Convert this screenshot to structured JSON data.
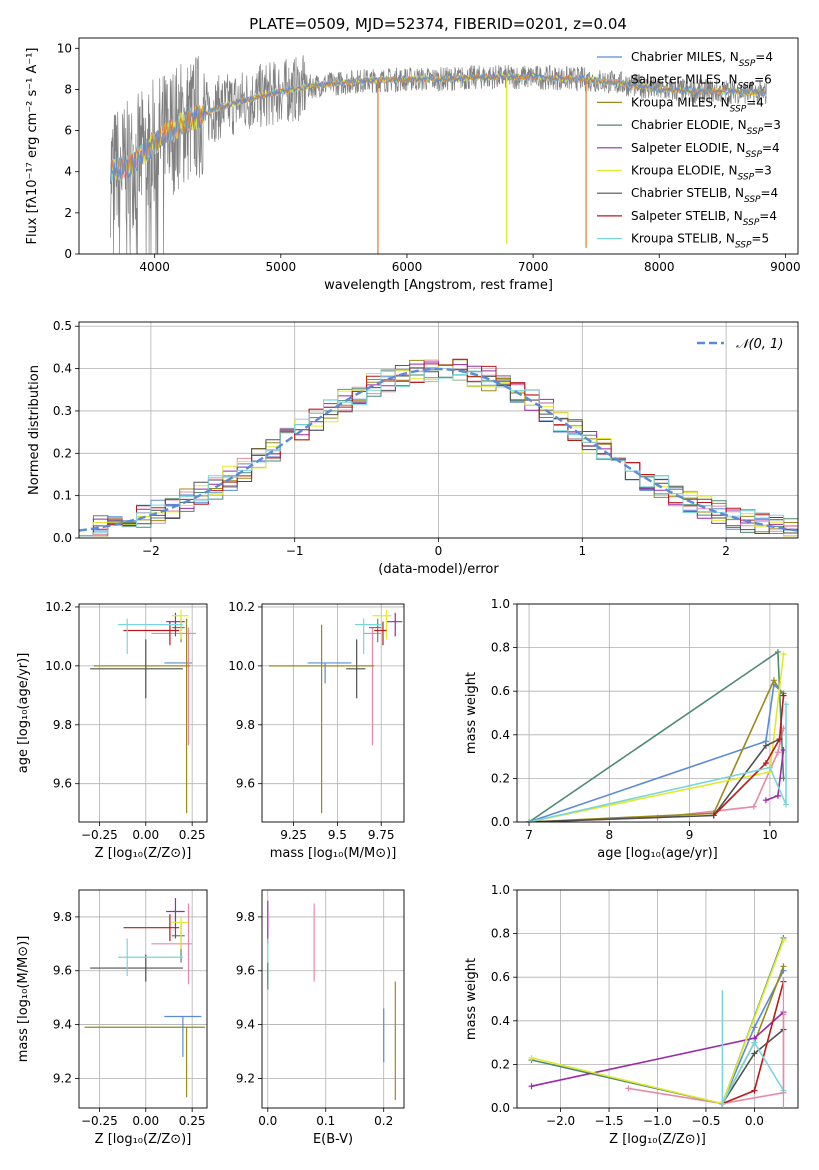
{
  "figure": {
    "title": "PLATE=0509, MJD=52374, FIBERID=0201, z=0.04"
  },
  "colors": {
    "Chabrier MILES": "#5b8bd8",
    "Salpeter MILES": "#e88aa6",
    "Kroupa MILES": "#9a8a1a",
    "Chabrier ELODIE": "#4e8a74",
    "Salpeter ELODIE": "#9a2aa8",
    "Kroupa ELODIE": "#e1ea2a",
    "Chabrier STELIB": "#505050",
    "Salpeter STELIB": "#b81a1a",
    "Kroupa STELIB": "#7ad6dc",
    "orange": "#e07a2a",
    "gray_data": "#808080",
    "normal_curve": "#5b8bd8"
  },
  "chart_data": [
    {
      "id": "spectrum",
      "type": "line",
      "title": "PLATE=0509, MJD=52374, FIBERID=0201, z=0.04",
      "xlabel": "wavelength [Angstrom, rest frame]",
      "ylabel": "Flux [fλ10⁻¹⁷ erg cm⁻² s⁻¹ A⁻¹]",
      "xlim": [
        3400,
        9100
      ],
      "ylim": [
        0,
        10.5
      ],
      "xticks": [
        4000,
        5000,
        6000,
        7000,
        8000,
        9000
      ],
      "yticks": [
        0,
        2,
        4,
        6,
        8,
        10
      ],
      "grid": false,
      "legend_position": "top-right",
      "legend": [
        {
          "name": "Chabrier MILES",
          "nssp": "4"
        },
        {
          "name": "Salpeter MILES",
          "nssp": "6"
        },
        {
          "name": "Kroupa MILES",
          "nssp": "4"
        },
        {
          "name": "Chabrier ELODIE",
          "nssp": "3"
        },
        {
          "name": "Salpeter ELODIE",
          "nssp": "4"
        },
        {
          "name": "Kroupa ELODIE",
          "nssp": "3"
        },
        {
          "name": "Chabrier STELIB",
          "nssp": "4"
        },
        {
          "name": "Salpeter STELIB",
          "nssp": "4"
        },
        {
          "name": "Kroupa STELIB",
          "nssp": "5"
        }
      ],
      "continuum": {
        "x": [
          3650,
          3800,
          3900,
          4000,
          4200,
          4500,
          4800,
          5000,
          5300,
          5600,
          6000,
          6300,
          6600,
          7000,
          7400,
          7700,
          8000,
          8300,
          8600,
          8850
        ],
        "y": [
          4.0,
          4.3,
          4.8,
          5.4,
          6.3,
          7.1,
          7.6,
          7.9,
          8.2,
          8.4,
          8.5,
          8.5,
          8.6,
          8.6,
          8.5,
          8.3,
          8.0,
          7.9,
          7.9,
          7.8
        ]
      },
      "dips": [
        {
          "x": 5770,
          "y": 0.0
        },
        {
          "x": 6790,
          "y": 0.5
        },
        {
          "x": 7420,
          "y": 0.3
        }
      ]
    },
    {
      "id": "residuals",
      "type": "bar",
      "xlabel": "(data-model)/error",
      "ylabel": "Normed distribution",
      "xlim": [
        -2.5,
        2.5
      ],
      "ylim": [
        0,
        0.51
      ],
      "xticks": [
        -2,
        -1,
        0,
        1,
        2
      ],
      "yticks": [
        0.0,
        0.1,
        0.2,
        0.3,
        0.4,
        0.5
      ],
      "grid": true,
      "legend_position": "top-right",
      "legend": [
        {
          "name": "𝒩(0, 1)"
        }
      ],
      "bin_width": 0.1,
      "note_series": "nine histograms, one per model"
    },
    {
      "id": "age_vs_Z",
      "type": "scatter",
      "xlabel": "Z [log₁₀(Z/Z⊙)]",
      "ylabel": "age  [log₁₀(age/yr)]",
      "xlim": [
        -0.36,
        0.33
      ],
      "ylim": [
        9.47,
        10.21
      ],
      "xticks": [
        -0.25,
        0.0,
        0.25
      ],
      "xticklabels": [
        "−0.25",
        "0.00",
        "0.25"
      ],
      "yticks": [
        9.6,
        9.8,
        10.0,
        10.2
      ],
      "grid": true,
      "points": [
        {
          "series": "Chabrier MILES",
          "x": 0.2,
          "y": 10.01,
          "xe": [
            0.1,
            0.05
          ],
          "ye": [
            0.0,
            0.0
          ]
        },
        {
          "series": "Salpeter MILES",
          "x": 0.23,
          "y": 10.11,
          "xe": [
            0.2,
            0.04
          ],
          "ye": [
            0.38,
            0.02
          ]
        },
        {
          "series": "Kroupa MILES",
          "x": 0.22,
          "y": 10.0,
          "xe": [
            0.5,
            0.02
          ],
          "ye": [
            0.5,
            0.16
          ]
        },
        {
          "series": "Chabrier ELODIE",
          "x": 0.19,
          "y": 10.13,
          "xe": [
            0.05,
            0.02
          ],
          "ye": [
            0.05,
            0.03
          ]
        },
        {
          "series": "Salpeter ELODIE",
          "x": 0.16,
          "y": 10.15,
          "xe": [
            0.05,
            0.05
          ],
          "ye": [
            0.05,
            0.03
          ]
        },
        {
          "series": "Kroupa ELODIE",
          "x": 0.19,
          "y": 10.17,
          "xe": [
            0.05,
            0.04
          ],
          "ye": [
            0.08,
            0.02
          ]
        },
        {
          "series": "Chabrier STELIB",
          "x": 0.0,
          "y": 9.99,
          "xe": [
            0.3,
            0.2
          ],
          "ye": [
            0.1,
            0.1
          ]
        },
        {
          "series": "Salpeter STELIB",
          "x": 0.13,
          "y": 10.12,
          "xe": [
            0.25,
            0.05
          ],
          "ye": [
            0.05,
            0.03
          ]
        },
        {
          "series": "Kroupa STELIB",
          "x": -0.1,
          "y": 10.14,
          "xe": [
            0.05,
            0.3
          ],
          "ye": [
            0.1,
            0.02
          ]
        }
      ]
    },
    {
      "id": "age_vs_mass",
      "type": "scatter",
      "xlabel": "mass [log₁₀(M/M⊙)]",
      "xlim": [
        9.07,
        9.88
      ],
      "ylim": [
        9.47,
        10.21
      ],
      "xticks": [
        9.25,
        9.5,
        9.75
      ],
      "yticks": [
        9.6,
        9.8,
        10.0,
        10.2
      ],
      "grid": true,
      "points": [
        {
          "series": "Chabrier MILES",
          "x": 9.43,
          "y": 10.01,
          "xe": [
            0.1,
            0.15
          ],
          "ye": [
            0.07,
            0.0
          ]
        },
        {
          "series": "Salpeter MILES",
          "x": 9.7,
          "y": 10.11,
          "xe": [
            0.05,
            0.05
          ],
          "ye": [
            0.38,
            0.02
          ]
        },
        {
          "series": "Kroupa MILES",
          "x": 9.41,
          "y": 10.0,
          "xe": [
            0.3,
            0.3
          ],
          "ye": [
            0.5,
            0.14
          ]
        },
        {
          "series": "Chabrier ELODIE",
          "x": 9.73,
          "y": 10.13,
          "xe": [
            0.05,
            0.02
          ],
          "ye": [
            0.05,
            0.03
          ]
        },
        {
          "series": "Salpeter ELODIE",
          "x": 9.83,
          "y": 10.15,
          "xe": [
            0.05,
            0.04
          ],
          "ye": [
            0.05,
            0.03
          ]
        },
        {
          "series": "Kroupa ELODIE",
          "x": 9.78,
          "y": 10.17,
          "xe": [
            0.08,
            0.03
          ],
          "ye": [
            0.08,
            0.02
          ]
        },
        {
          "series": "Chabrier STELIB",
          "x": 9.61,
          "y": 9.99,
          "xe": [
            0.06,
            0.05
          ],
          "ye": [
            0.1,
            0.1
          ]
        },
        {
          "series": "Salpeter STELIB",
          "x": 9.76,
          "y": 10.12,
          "xe": [
            0.05,
            0.02
          ],
          "ye": [
            0.05,
            0.03
          ]
        },
        {
          "series": "Kroupa STELIB",
          "x": 9.65,
          "y": 10.14,
          "xe": [
            0.05,
            0.1
          ],
          "ye": [
            0.1,
            0.02
          ]
        }
      ]
    },
    {
      "id": "weight_vs_age",
      "type": "line",
      "xlabel": "age  [log₁₀(age/yr)]",
      "ylabel": "mass weight",
      "xlim": [
        6.85,
        10.35
      ],
      "ylim": [
        0,
        1
      ],
      "xticks": [
        7,
        8,
        9,
        10
      ],
      "yticks": [
        0.0,
        0.2,
        0.4,
        0.6,
        0.8,
        1.0
      ],
      "grid": true,
      "series": [
        {
          "name": "Chabrier MILES",
          "x": [
            7.0,
            9.95,
            10.05,
            10.17
          ],
          "y": [
            0.0,
            0.37,
            0.63,
            0.59
          ]
        },
        {
          "name": "Salpeter MILES",
          "x": [
            7.0,
            8.6,
            9.8,
            10.1,
            10.17
          ],
          "y": [
            0.0,
            0.02,
            0.07,
            0.32,
            0.43
          ]
        },
        {
          "name": "Kroupa MILES",
          "x": [
            7.0,
            9.3,
            10.05,
            10.17
          ],
          "y": [
            0.0,
            0.04,
            0.65,
            0.58
          ]
        },
        {
          "name": "Chabrier ELODIE",
          "x": [
            7.0,
            10.1,
            10.17
          ],
          "y": [
            0.0,
            0.78,
            0.2
          ]
        },
        {
          "name": "Salpeter ELODIE",
          "x": [
            9.95,
            10.1,
            10.17
          ],
          "y": [
            0.1,
            0.12,
            0.33
          ]
        },
        {
          "name": "Kroupa ELODIE",
          "x": [
            7.0,
            10.0,
            10.17
          ],
          "y": [
            0.0,
            0.23,
            0.77
          ]
        },
        {
          "name": "Chabrier STELIB",
          "x": [
            7.0,
            9.3,
            9.95,
            10.12
          ],
          "y": [
            0.0,
            0.03,
            0.35,
            0.38
          ]
        },
        {
          "name": "Salpeter STELIB",
          "x": [
            9.3,
            9.95,
            10.12,
            10.17
          ],
          "y": [
            0.03,
            0.27,
            0.38,
            0.58
          ]
        },
        {
          "name": "Kroupa STELIB",
          "x": [
            7.0,
            10.0,
            10.2,
            10.2
          ],
          "y": [
            0.0,
            0.25,
            0.08,
            0.54
          ]
        }
      ]
    },
    {
      "id": "mass_vs_Z",
      "type": "scatter",
      "xlabel": "Z [log₁₀(Z/Z⊙)]",
      "ylabel": "mass [log₁₀(M/M⊙)]",
      "xlim": [
        -0.36,
        0.33
      ],
      "ylim": [
        9.09,
        9.9
      ],
      "xticks": [
        -0.25,
        0.0,
        0.25
      ],
      "xticklabels": [
        "−0.25",
        "0.00",
        "0.25"
      ],
      "yticks": [
        9.2,
        9.4,
        9.6,
        9.8
      ],
      "grid": true,
      "points": [
        {
          "series": "Chabrier MILES",
          "x": 0.2,
          "y": 9.43,
          "xe": [
            0.1,
            0.1
          ],
          "ye": [
            0.15,
            0.0
          ]
        },
        {
          "series": "Salpeter MILES",
          "x": 0.23,
          "y": 9.7,
          "xe": [
            0.2,
            0.02
          ],
          "ye": [
            0.15,
            0.15
          ]
        },
        {
          "series": "Kroupa MILES",
          "x": 0.22,
          "y": 9.39,
          "xe": [
            0.55,
            0.1
          ],
          "ye": [
            0.26,
            0.0
          ]
        },
        {
          "series": "Chabrier ELODIE",
          "x": 0.19,
          "y": 9.73,
          "xe": [
            0.05,
            0.02
          ],
          "ye": [
            0.1,
            0.05
          ]
        },
        {
          "series": "Salpeter ELODIE",
          "x": 0.16,
          "y": 9.82,
          "xe": [
            0.05,
            0.05
          ],
          "ye": [
            0.1,
            0.05
          ]
        },
        {
          "series": "Kroupa ELODIE",
          "x": 0.19,
          "y": 9.78,
          "xe": [
            0.05,
            0.04
          ],
          "ye": [
            0.1,
            0.02
          ]
        },
        {
          "series": "Chabrier STELIB",
          "x": 0.0,
          "y": 9.61,
          "xe": [
            0.3,
            0.2
          ],
          "ye": [
            0.05,
            0.05
          ]
        },
        {
          "series": "Salpeter STELIB",
          "x": 0.13,
          "y": 9.76,
          "xe": [
            0.25,
            0.05
          ],
          "ye": [
            0.05,
            0.05
          ]
        },
        {
          "series": "Kroupa STELIB",
          "x": -0.1,
          "y": 9.65,
          "xe": [
            0.05,
            0.3
          ],
          "ye": [
            0.07,
            0.07
          ]
        }
      ]
    },
    {
      "id": "mass_vs_ebv",
      "type": "scatter",
      "xlabel": "E(B-V)",
      "xlim": [
        -0.01,
        0.235
      ],
      "ylim": [
        9.09,
        9.9
      ],
      "xticks": [
        0.0,
        0.1,
        0.2
      ],
      "xticklabels": [
        "0.0",
        "0.1",
        "0.2"
      ],
      "yticks": [
        9.2,
        9.4,
        9.6,
        9.8
      ],
      "grid": true,
      "points": [
        {
          "series": "Salpeter MILES",
          "x": 0.08,
          "y": 9.7,
          "ye": [
            0.14,
            0.15
          ]
        },
        {
          "series": "Kroupa MILES",
          "x": 0.22,
          "y": 9.34,
          "ye": [
            0.22,
            0.22
          ]
        },
        {
          "series": "Salpeter ELODIE",
          "x": 0.0,
          "y": 9.78,
          "ye": [
            0.08,
            0.08
          ]
        },
        {
          "series": "Kroupa STELIB",
          "x": 0.0,
          "y": 9.64,
          "ye": [
            0.08,
            0.08
          ]
        },
        {
          "series": "Chabrier ELODIE",
          "x": 0.0,
          "y": 9.58,
          "ye": [
            0.05,
            0.05
          ]
        },
        {
          "series": "Chabrier MILES",
          "x": 0.2,
          "y": 9.36,
          "ye": [
            0.1,
            0.1
          ]
        }
      ]
    },
    {
      "id": "weight_vs_Z",
      "type": "line",
      "xlabel": "Z [log₁₀(Z/Z⊙)]",
      "ylabel": "mass weight",
      "xlim": [
        -2.45,
        0.45
      ],
      "ylim": [
        0,
        1
      ],
      "xticks": [
        -2.0,
        -1.5,
        -1.0,
        -0.5,
        0.0
      ],
      "xticklabels": [
        "−2.0",
        "−1.5",
        "−1.0",
        "−0.5",
        "0.0"
      ],
      "yticks": [
        0.0,
        0.2,
        0.4,
        0.6,
        0.8,
        1.0
      ],
      "grid": true,
      "series": [
        {
          "name": "Chabrier MILES",
          "x": [
            -0.33,
            0.0,
            0.3
          ],
          "y": [
            0.02,
            0.37,
            0.63
          ]
        },
        {
          "name": "Salpeter MILES",
          "x": [
            -1.3,
            -0.33,
            0.3,
            0.3
          ],
          "y": [
            0.09,
            0.02,
            0.07,
            0.43
          ]
        },
        {
          "name": "Kroupa MILES",
          "x": [
            -0.33,
            0.0,
            0.3
          ],
          "y": [
            0.02,
            0.3,
            0.65
          ]
        },
        {
          "name": "Chabrier ELODIE",
          "x": [
            -2.3,
            -0.33,
            0.3
          ],
          "y": [
            0.22,
            0.02,
            0.78
          ]
        },
        {
          "name": "Salpeter ELODIE",
          "x": [
            -2.3,
            0.0,
            0.3
          ],
          "y": [
            0.1,
            0.32,
            0.44
          ]
        },
        {
          "name": "Kroupa ELODIE",
          "x": [
            -2.3,
            -0.33,
            0.3
          ],
          "y": [
            0.23,
            0.02,
            0.77
          ]
        },
        {
          "name": "Chabrier STELIB",
          "x": [
            -0.33,
            0.0,
            0.3
          ],
          "y": [
            0.02,
            0.25,
            0.36
          ]
        },
        {
          "name": "Salpeter STELIB",
          "x": [
            -0.33,
            0.0,
            0.3
          ],
          "y": [
            0.02,
            0.08,
            0.58
          ]
        },
        {
          "name": "Kroupa STELIB",
          "x": [
            -0.33,
            0.0,
            0.3
          ],
          "y": [
            0.02,
            0.3,
            0.08
          ]
        }
      ]
    }
  ]
}
